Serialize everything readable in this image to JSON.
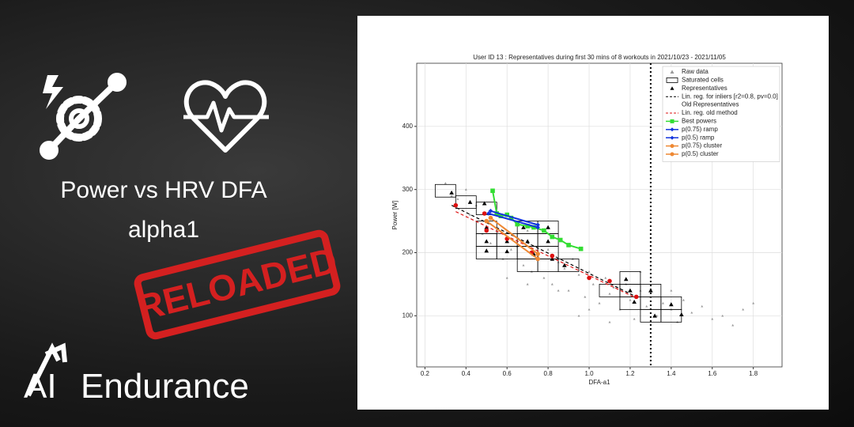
{
  "banner": {
    "title_line1": "Power vs HRV DFA",
    "title_line2": "alpha1",
    "stamp": "RELOADED",
    "logo_ai": "AI",
    "logo_text": "Endurance"
  },
  "chart_data": {
    "type": "scatter",
    "title": "User ID 13    : Representatives during first 30 mins of 8 workouts in 2021/10/23 - 2021/11/05",
    "x_label": "DFA-a1",
    "y_label": "Power [W]",
    "xlim": [
      0.16,
      1.94
    ],
    "ylim": [
      19,
      500
    ],
    "xticks": [
      0.2,
      0.4,
      0.6,
      0.8,
      {
        "value": 1,
        "label": "1.0"
      },
      1.2,
      1.4,
      1.6,
      1.8
    ],
    "yticks": [
      100,
      200,
      300,
      400
    ],
    "grid": true,
    "legend": "upper right",
    "threshold_x": 1.3,
    "cell_size": [
      0.1,
      20
    ],
    "series": [
      {
        "name": "Raw data",
        "color": "#9a9a9a",
        "marker": "^",
        "x": [
          0.3,
          0.33,
          0.36,
          0.4,
          0.42,
          0.45,
          0.48,
          0.5,
          0.52,
          0.55,
          0.58,
          0.6,
          0.62,
          0.65,
          0.68,
          0.7,
          0.72,
          0.75,
          0.78,
          0.8,
          0.82,
          0.85,
          0.88,
          0.9,
          0.92,
          0.95,
          0.98,
          1.0,
          1.02,
          1.05,
          1.08,
          1.1,
          1.12,
          1.15,
          1.18,
          1.2,
          1.22,
          1.25,
          1.28,
          1.3,
          1.33,
          1.36,
          1.4,
          1.43,
          1.46,
          1.5,
          1.55,
          1.6,
          1.65,
          1.7,
          1.75,
          1.8,
          0.6,
          0.7,
          0.85,
          1.0,
          1.1,
          1.25,
          1.4,
          0.95
        ],
        "values": [
          310,
          290,
          285,
          300,
          260,
          275,
          230,
          250,
          215,
          240,
          190,
          225,
          205,
          210,
          180,
          235,
          170,
          195,
          160,
          205,
          150,
          185,
          175,
          140,
          190,
          165,
          130,
          170,
          150,
          120,
          160,
          135,
          145,
          110,
          150,
          125,
          95,
          140,
          115,
          130,
          100,
          120,
          110,
          90,
          125,
          105,
          115,
          95,
          100,
          85,
          110,
          120,
          160,
          150,
          140,
          110,
          90,
          170,
          140,
          100
        ]
      },
      {
        "name": "Saturated cells",
        "color": "#000000",
        "marker": "cell",
        "x": [
          0.3,
          0.4,
          0.5,
          0.5,
          0.5,
          0.5,
          0.6,
          0.6,
          0.7,
          0.7,
          0.7,
          0.7,
          0.8,
          0.8,
          0.8,
          0.8,
          0.9,
          1.1,
          1.2,
          1.2,
          1.2,
          1.3,
          1.3,
          1.3,
          1.4,
          1.4
        ],
        "values": [
          298,
          280,
          270,
          240,
          220,
          200,
          220,
          200,
          240,
          220,
          200,
          180,
          240,
          220,
          200,
          180,
          180,
          140,
          160,
          140,
          120,
          140,
          120,
          100,
          120,
          100
        ]
      },
      {
        "name": "Representatives",
        "color": "#000000",
        "marker": "^",
        "x": [
          0.33,
          0.42,
          0.49,
          0.5,
          0.5,
          0.5,
          0.6,
          0.6,
          0.68,
          0.7,
          0.73,
          0.8,
          0.8,
          0.82,
          0.88,
          1.18,
          1.2,
          1.22,
          1.3,
          1.32,
          1.4,
          1.45
        ],
        "values": [
          295,
          280,
          278,
          240,
          218,
          203,
          218,
          202,
          240,
          218,
          198,
          240,
          218,
          190,
          180,
          158,
          140,
          122,
          140,
          100,
          118,
          102
        ]
      },
      {
        "name": "Lin. reg. for inliers [r2=0.8, pv=0.0]",
        "color": "#000000",
        "marker": "none",
        "line": "--",
        "x": [
          0.33,
          1.23
        ],
        "values": [
          275,
          130
        ]
      },
      {
        "name": "Old Representatives",
        "color": "#dd1111",
        "marker": "o",
        "legend_marker": false,
        "x": [
          0.35,
          0.49,
          0.5,
          0.6,
          0.72,
          0.82,
          1.0,
          1.1,
          1.23
        ],
        "values": [
          275,
          262,
          235,
          222,
          200,
          195,
          160,
          155,
          130
        ]
      },
      {
        "name": "Lin. reg. old method",
        "color": "#dd1111",
        "marker": "none",
        "line": "--",
        "x": [
          0.35,
          1.23
        ],
        "values": [
          265,
          128
        ]
      },
      {
        "name": "Best powers",
        "color": "#33dd33",
        "marker": "s",
        "line": "-",
        "x": [
          0.53,
          0.55,
          0.57,
          0.6,
          0.62,
          0.65,
          0.7,
          0.73,
          0.78,
          0.82,
          0.86,
          0.9,
          0.96
        ],
        "values": [
          298,
          262,
          258,
          260,
          255,
          245,
          242,
          240,
          235,
          225,
          220,
          212,
          206
        ]
      },
      {
        "name": "p(0.75) ramp",
        "color": "#1133dd",
        "marker": "D",
        "line": "-",
        "x": [
          0.52,
          0.75
        ],
        "values": [
          266,
          244
        ]
      },
      {
        "name": "p(0.5) ramp",
        "color": "#1133dd",
        "marker": "D",
        "line": "-",
        "x": [
          0.51,
          0.75
        ],
        "values": [
          262,
          240
        ]
      },
      {
        "name": "p(0.75) cluster",
        "color": "#ee8833",
        "marker": "o",
        "line": "-",
        "x": [
          0.52,
          0.75
        ],
        "values": [
          255,
          198
        ]
      },
      {
        "name": "p(0.5) cluster",
        "color": "#ee8833",
        "marker": "o",
        "line": "-",
        "x": [
          0.5,
          0.75
        ],
        "values": [
          250,
          190
        ]
      }
    ]
  }
}
